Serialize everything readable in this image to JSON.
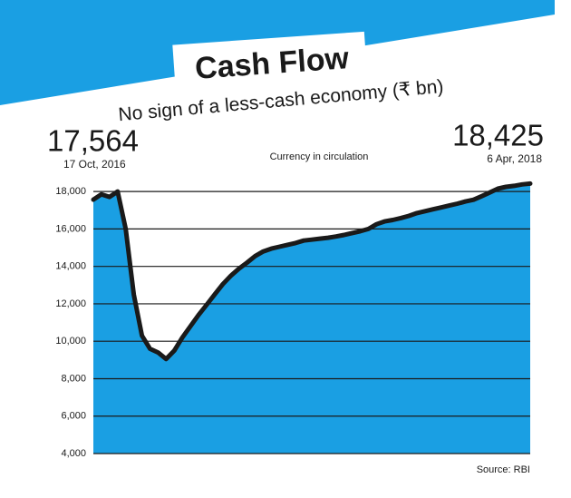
{
  "chart_data": {
    "type": "area",
    "title": "Cash Flow",
    "subtitle": "No sign of a less-cash economy (₹ bn)",
    "series_label": "Currency in circulation",
    "source": "Source: RBI",
    "annotations": [
      {
        "text": "17,564",
        "note": "17 Oct, 2016"
      },
      {
        "text": "18,425",
        "note": "6 Apr, 2018"
      }
    ],
    "values": [
      17564,
      17850,
      17710,
      18000,
      16000,
      12500,
      10300,
      9600,
      9400,
      9050,
      9500,
      10200,
      10800,
      11400,
      11950,
      12500,
      13050,
      13500,
      13880,
      14200,
      14550,
      14800,
      14950,
      15050,
      15150,
      15250,
      15380,
      15430,
      15480,
      15530,
      15600,
      15680,
      15780,
      15880,
      16000,
      16250,
      16400,
      16480,
      16580,
      16700,
      16850,
      16950,
      17050,
      17150,
      17250,
      17350,
      17470,
      17560,
      17750,
      17950,
      18150,
      18250,
      18300,
      18380,
      18425
    ],
    "color": "#1a9fe3",
    "line_color": "#1a1a1a",
    "ylim": [
      4000,
      19000
    ],
    "yticks": [
      {
        "value": 4000,
        "label": "4,000"
      },
      {
        "value": 6000,
        "label": "6,000"
      },
      {
        "value": 8000,
        "label": "8,000"
      },
      {
        "value": 10000,
        "label": "10,000"
      },
      {
        "value": 12000,
        "label": "12,000"
      },
      {
        "value": 14000,
        "label": "14,000"
      },
      {
        "value": 16000,
        "label": "16,000"
      },
      {
        "value": 18000,
        "label": "18,000"
      }
    ],
    "grid": true
  }
}
